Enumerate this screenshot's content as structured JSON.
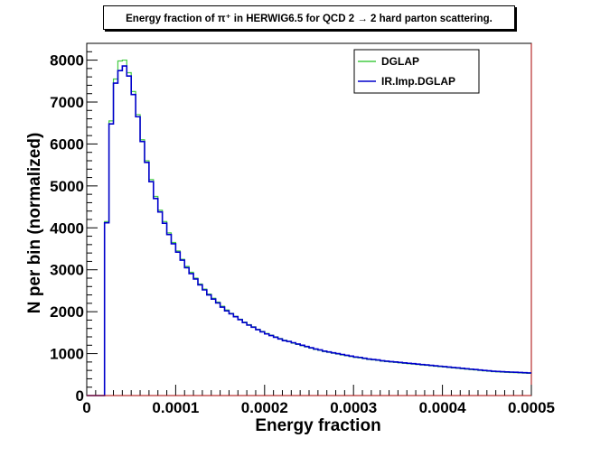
{
  "chart_data": {
    "type": "line",
    "title": "Energy fraction of π⁺ in HERWIG6.5 for QCD 2 → 2 hard parton scattering.",
    "xlabel": "Energy fraction",
    "ylabel": "N per bin (normalized)",
    "xlim": [
      0,
      0.0005
    ],
    "ylim": [
      0,
      8400
    ],
    "x_ticks": [
      0,
      0.0001,
      0.0002,
      0.0003,
      0.0004,
      0.0005
    ],
    "x_tick_labels": [
      "0",
      "0.0001",
      "0.0002",
      "0.0003",
      "0.0004",
      "0.0005"
    ],
    "y_ticks": [
      0,
      1000,
      2000,
      3000,
      4000,
      5000,
      6000,
      7000,
      8000
    ],
    "y_tick_labels": [
      "0",
      "1000",
      "2000",
      "3000",
      "4000",
      "5000",
      "6000",
      "7000",
      "8000"
    ],
    "bin_width": 5e-06,
    "x_bin_edges_start": 0,
    "legend_position": "top-right",
    "series": [
      {
        "name": "DGLAP",
        "color": "#44cc44",
        "values": [
          0,
          0,
          0,
          0,
          4150,
          6550,
          7550,
          7980,
          8000,
          7700,
          7250,
          6700,
          6100,
          5600,
          5150,
          4750,
          4420,
          4150,
          3880,
          3650,
          3450,
          3250,
          3080,
          2940,
          2800,
          2660,
          2540,
          2420,
          2320,
          2230,
          2130,
          2040,
          1960,
          1890,
          1820,
          1750,
          1690,
          1640,
          1580,
          1530,
          1480,
          1440,
          1400,
          1360,
          1320,
          1290,
          1250,
          1220,
          1190,
          1160,
          1130,
          1100,
          1080,
          1050,
          1030,
          1010,
          990,
          970,
          950,
          930,
          910,
          900,
          880,
          860,
          850,
          840,
          820,
          810,
          800,
          790,
          780,
          770,
          760,
          750,
          740,
          730,
          720,
          710,
          700,
          690,
          680,
          670,
          660,
          650,
          640,
          630,
          620,
          610,
          600,
          590,
          580,
          570,
          565,
          560,
          555,
          550,
          545,
          540,
          535,
          530
        ]
      },
      {
        "name": "IR.Imp.DGLAP",
        "color": "#0000cc",
        "values": [
          0,
          0,
          0,
          0,
          4120,
          6480,
          7450,
          7750,
          7860,
          7620,
          7180,
          6650,
          6060,
          5560,
          5100,
          4700,
          4380,
          4110,
          3840,
          3620,
          3420,
          3230,
          3050,
          2910,
          2780,
          2640,
          2520,
          2400,
          2300,
          2210,
          2110,
          2020,
          1950,
          1880,
          1810,
          1740,
          1680,
          1630,
          1570,
          1520,
          1470,
          1430,
          1390,
          1350,
          1310,
          1290,
          1260,
          1230,
          1200,
          1170,
          1140,
          1110,
          1090,
          1060,
          1040,
          1020,
          1000,
          980,
          960,
          940,
          920,
          910,
          890,
          870,
          860,
          850,
          830,
          820,
          810,
          800,
          790,
          780,
          770,
          760,
          750,
          740,
          730,
          720,
          710,
          700,
          690,
          680,
          670,
          660,
          650,
          640,
          630,
          620,
          610,
          600,
          590,
          580,
          575,
          570,
          565,
          560,
          555,
          550,
          545,
          540
        ]
      }
    ]
  }
}
